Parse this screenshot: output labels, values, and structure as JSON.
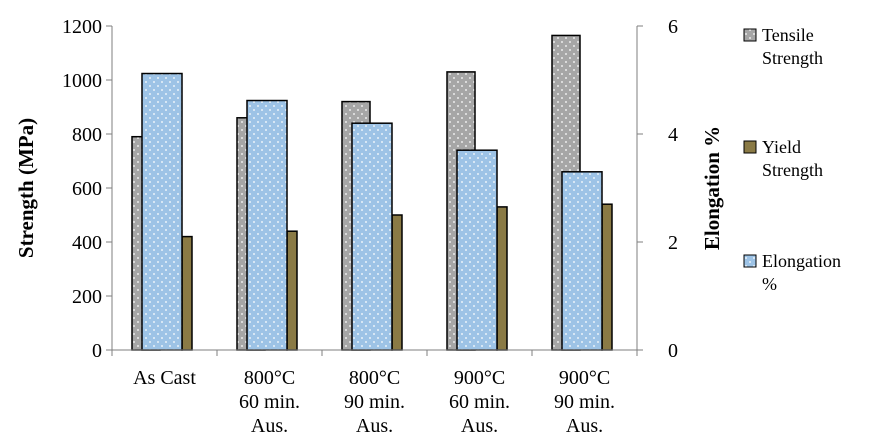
{
  "chart_data": {
    "type": "bar",
    "categories": [
      [
        "As Cast"
      ],
      [
        "800°C",
        "60 min.",
        "Aus."
      ],
      [
        "800°C",
        "90 min.",
        "Aus."
      ],
      [
        "900°C",
        "60 min.",
        "Aus."
      ],
      [
        "900°C",
        "90 min.",
        "Aus."
      ]
    ],
    "series": [
      {
        "name": [
          "Tensile",
          "Strength"
        ],
        "axis": "left",
        "values": [
          790,
          860,
          920,
          1030,
          1165
        ],
        "color": "#a6a6a6",
        "pattern": "dots"
      },
      {
        "name": [
          "Yield",
          "Strength"
        ],
        "axis": "left",
        "values": [
          420,
          440,
          500,
          530,
          540
        ],
        "color": "#8a7a45",
        "pattern": "none"
      },
      {
        "name": [
          "Elongation",
          "%"
        ],
        "axis": "right",
        "values": [
          5.12,
          4.62,
          4.2,
          3.7,
          3.3
        ],
        "color": "#9dc3e6",
        "pattern": "dots"
      }
    ],
    "ylabel": "Strength (MPa)",
    "y2label": "Elongation %",
    "ylim": [
      0,
      1200
    ],
    "y2lim": [
      0,
      6
    ],
    "yticks": [
      "0",
      "200",
      "400",
      "600",
      "800",
      "1000",
      "1200"
    ],
    "y2ticks": [
      "0",
      "2",
      "4",
      "6"
    ],
    "grid": false,
    "legend_position": "right"
  }
}
